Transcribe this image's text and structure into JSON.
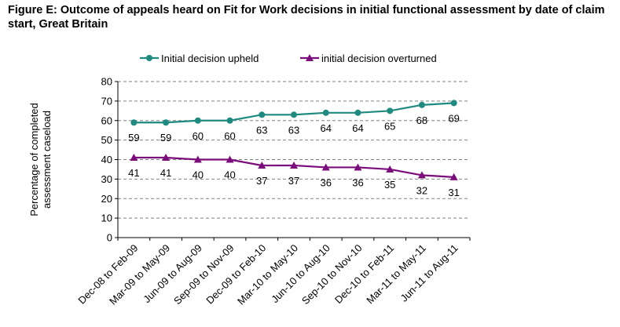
{
  "title": "Figure E: Outcome of appeals heard on Fit for Work decisions in initial functional assessment by date of claim start, Great Britain",
  "colors": {
    "upheld": "#1f8a80",
    "overturned": "#7b0c7b",
    "grid": "#808080"
  },
  "chart_data": {
    "type": "line",
    "title": "Figure E: Outcome of appeals heard on Fit for Work decisions in initial functional assessment by date of claim start, Great Britain",
    "ylabel": "Percentage of completed assessment caseload",
    "xlabel": "",
    "ylim": [
      0,
      80
    ],
    "yticks": [
      0,
      10,
      20,
      30,
      40,
      50,
      60,
      70,
      80
    ],
    "grid": true,
    "legend_position": "top",
    "categories": [
      "Dec-08 to Feb-09",
      "Mar-09 to May-09",
      "Jun-09 to Aug-09",
      "Sep-09 to Nov-09",
      "Dec-09 to Feb-10",
      "Mar-10 to May-10",
      "Jun-10 to Aug-10",
      "Sep-10 to Nov-10",
      "Dec-10 to Feb-11",
      "Mar-11 to May-11",
      "Jun-11 to Aug-11"
    ],
    "series": [
      {
        "name": "Initial decision upheld",
        "marker": "circle",
        "values": [
          59,
          59,
          60,
          60,
          63,
          63,
          64,
          64,
          65,
          68,
          69
        ]
      },
      {
        "name": "initial decision overturned",
        "marker": "triangle",
        "values": [
          41,
          41,
          40,
          40,
          37,
          37,
          36,
          36,
          35,
          32,
          31
        ]
      }
    ]
  }
}
